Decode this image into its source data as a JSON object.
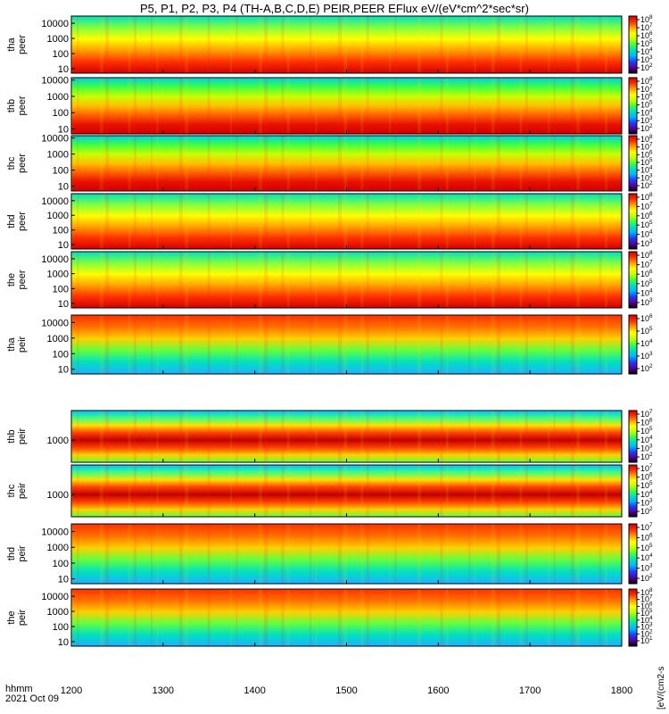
{
  "figure": {
    "title": "P5, P1, P2, P3, P4 (TH-A,B,C,D,E) PEIR,PEER EFlux eV/(eV*cm^2*sec*sr)",
    "time_label": "hhmm",
    "date_label": "2021 Oct 09"
  },
  "chart_data": {
    "type": "heatmap",
    "x": {
      "ticks": [
        1200,
        1300,
        1400,
        1500,
        1600,
        1700,
        1800
      ],
      "tick_labels": [
        "1200",
        "1300",
        "1400",
        "1500",
        "1600",
        "1700",
        "1800"
      ],
      "range": [
        1200,
        1800
      ]
    },
    "colorbar_label_partial": "[eV/(cm2-s",
    "colormap": [
      "#000000",
      "#5a00a0",
      "#1f3cff",
      "#00b4ff",
      "#00e0c0",
      "#40ff40",
      "#c8ff00",
      "#ffff00",
      "#ffa000",
      "#ff3000",
      "#d00000"
    ],
    "panels": [
      {
        "probe": "tha",
        "species": "peer",
        "ylim": [
          5,
          30000
        ],
        "yticks": [
          "10",
          "100",
          "1000",
          "10000"
        ],
        "cbar_ticks": [
          "10^8",
          "10^7",
          "10^6",
          "10^5",
          "10^4",
          "10^3",
          "10^2"
        ]
      },
      {
        "probe": "thb",
        "species": "peer",
        "ylim": [
          5,
          14000
        ],
        "yticks": [
          "10",
          "100",
          "1000",
          "10000"
        ],
        "cbar_ticks": [
          "10^8",
          "10^7",
          "10^6",
          "10^5",
          "10^4",
          "10^3",
          "10^2"
        ]
      },
      {
        "probe": "thc",
        "species": "peer",
        "ylim": [
          5,
          14000
        ],
        "yticks": [
          "10",
          "100",
          "1000",
          "10000"
        ],
        "cbar_ticks": [
          "10^8",
          "10^7",
          "10^6",
          "10^5",
          "10^4",
          "10^3",
          "10^2"
        ]
      },
      {
        "probe": "thd",
        "species": "peer",
        "ylim": [
          5,
          30000
        ],
        "yticks": [
          "10",
          "100",
          "1000",
          "10000"
        ],
        "cbar_ticks": [
          "10^8",
          "10^7",
          "10^6",
          "10^5",
          "10^4",
          "10^3"
        ]
      },
      {
        "probe": "the",
        "species": "peer",
        "ylim": [
          5,
          30000
        ],
        "yticks": [
          "10",
          "100",
          "1000",
          "10000"
        ],
        "cbar_ticks": [
          "10^8",
          "10^7",
          "10^6",
          "10^5",
          "10^4",
          "10^3"
        ]
      },
      {
        "probe": "tha",
        "species": "peir",
        "ylim": [
          5,
          30000
        ],
        "yticks": [
          "10",
          "100",
          "1000",
          "10000"
        ],
        "cbar_ticks": [
          "10^6",
          "10^5",
          "10^4",
          "10^3",
          "10^2"
        ]
      },
      {
        "probe": "thb",
        "species": "peir",
        "ylim": [
          300,
          5000
        ],
        "yticks": [
          "1000"
        ],
        "cbar_ticks": [
          "10^7",
          "10^6",
          "10^5",
          "10^4",
          "10^3",
          "10^2"
        ]
      },
      {
        "probe": "thc",
        "species": "peir",
        "ylim": [
          300,
          5000
        ],
        "yticks": [
          "1000"
        ],
        "cbar_ticks": [
          "10^7",
          "10^6",
          "10^5",
          "10^4",
          "10^3",
          "10^2"
        ]
      },
      {
        "probe": "thd",
        "species": "peir",
        "ylim": [
          5,
          30000
        ],
        "yticks": [
          "10",
          "100",
          "1000",
          "10000"
        ],
        "cbar_ticks": [
          "10^7",
          "10^6",
          "10^5",
          "10^4",
          "10^3",
          "10^2"
        ]
      },
      {
        "probe": "the",
        "species": "peir",
        "ylim": [
          5,
          30000
        ],
        "yticks": [
          "10",
          "100",
          "1000",
          "10000"
        ],
        "cbar_ticks": [
          "10^8",
          "10^7",
          "10^6",
          "10^5",
          "10^4",
          "10^3",
          "10^2",
          "10^1"
        ]
      }
    ]
  }
}
